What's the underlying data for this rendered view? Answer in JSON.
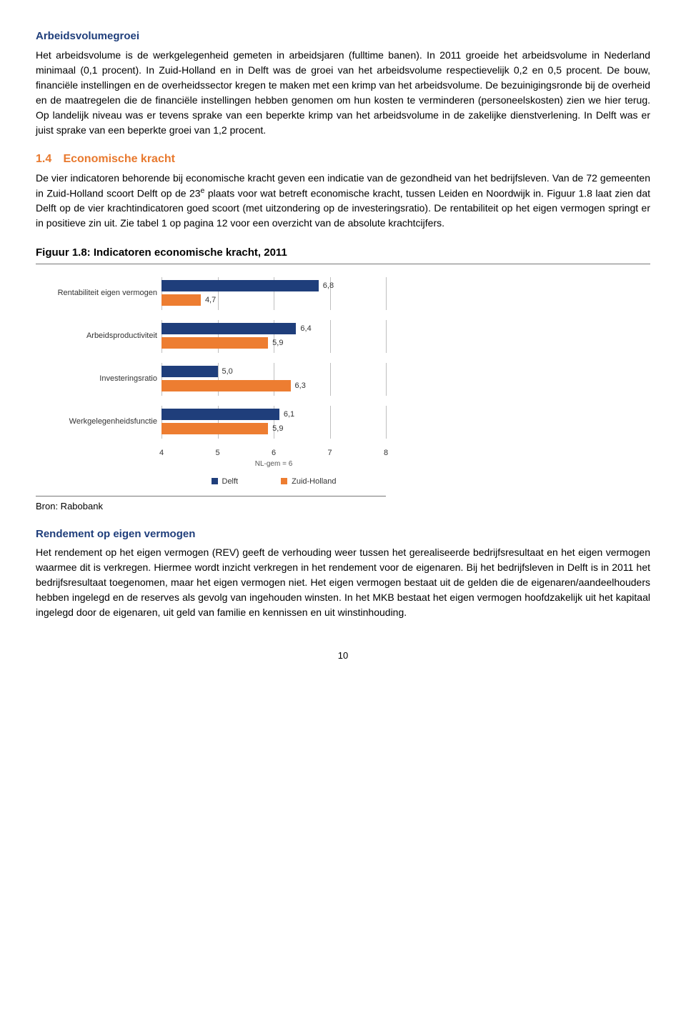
{
  "sec1": {
    "heading": "Arbeidsvolumegroei",
    "body": "Het arbeidsvolume is de werkgelegenheid gemeten in arbeidsjaren (fulltime banen). In 2011 groeide het arbeidsvolume in Nederland minimaal (0,1 procent). In Zuid-Holland en in Delft was de groei van het arbeidsvolume respectievelijk 0,2 en 0,5 procent. De bouw, financiële instellingen en de overheidssector kregen te maken met een krimp van het arbeidsvolume. De bezuinigingsronde bij de overheid en de maatregelen die de financiële instellingen hebben genomen om hun kosten te verminderen (personeelskosten) zien we hier terug. Op landelijk niveau was er tevens sprake van een beperkte krimp van het arbeidsvolume in de zakelijke dienstverlening. In Delft was er juist sprake van een beperkte groei van 1,2 procent."
  },
  "sec2": {
    "number": "1.4",
    "title": "Economische kracht",
    "body_a": "De vier indicatoren behorende bij economische kracht geven een indicatie van de gezondheid van het bedrijfsleven. Van de 72 gemeenten in Zuid-Holland scoort Delft op de 23",
    "body_a_sup": "e",
    "body_a2": " plaats voor wat betreft economische kracht, tussen Leiden en Noordwijk in. Figuur 1.8 laat zien dat Delft op de vier krachtindicatoren goed scoort (met uitzondering op de investeringsratio). De rentabiliteit op het eigen vermogen springt er in positieve zin uit. Zie tabel 1 op pagina 12 voor een overzicht van de absolute krachtcijfers."
  },
  "figure": {
    "title": "Figuur 1.8: Indicatoren economische kracht, 2011",
    "categories": [
      "Rentabiliteit eigen vermogen",
      "Arbeidsproductiviteit",
      "Investeringsratio",
      "Werkgelegenheidsfunctie"
    ],
    "delft": [
      6.8,
      6.4,
      5.0,
      6.1
    ],
    "zuid": [
      4.7,
      5.9,
      6.3,
      5.9
    ],
    "delft_s": [
      "6,8",
      "6,4",
      "5,0",
      "6,1"
    ],
    "zuid_s": [
      "4,7",
      "5,9",
      "6,3",
      "5,9"
    ],
    "xmin": 4,
    "xmax": 8,
    "xticks": [
      4,
      5,
      6,
      7,
      8
    ],
    "axis_sub": "NL-gem = 6",
    "legend": {
      "d": "Delft",
      "z": "Zuid-Holland"
    },
    "colors": {
      "delft": "#1f3e7b",
      "zuid": "#ed7d31",
      "grid": "#bfbfbf"
    },
    "source": "Bron: Rabobank"
  },
  "sec3": {
    "heading": "Rendement op eigen vermogen",
    "body": "Het rendement op het eigen vermogen (REV) geeft de verhouding weer tussen het gerealiseerde bedrijfsresultaat en het eigen vermogen waarmee dit is verkregen. Hiermee wordt inzicht verkregen in het rendement voor de eigenaren. Bij het bedrijfsleven in Delft is in 2011 het bedrijfsresultaat toegenomen, maar het eigen vermogen niet. Het eigen vermogen bestaat uit de gelden die de eigenaren/aandeelhouders hebben ingelegd en de reserves als gevolg van ingehouden winsten. In het MKB bestaat het eigen vermogen hoofdzakelijk uit het kapitaal ingelegd door de eigenaren, uit geld van familie en kennissen en uit winstinhouding."
  },
  "pagenum": "10"
}
